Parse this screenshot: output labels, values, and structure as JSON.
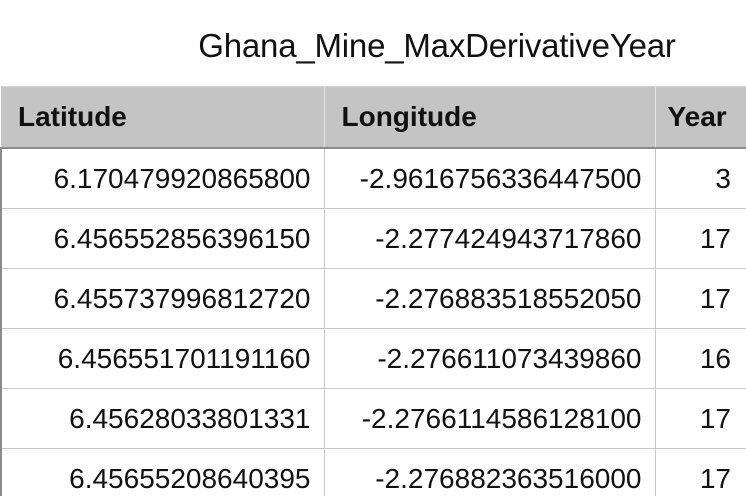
{
  "sheet": {
    "title": "Ghana_Mine_MaxDerivativeYear"
  },
  "table": {
    "headers": [
      "Latitude",
      "Longitude",
      "Year"
    ],
    "rows": [
      [
        "6.170479920865800",
        "-2.9616756336447500",
        "3"
      ],
      [
        "6.456552856396150",
        "-2.277424943717860",
        "17"
      ],
      [
        "6.455737996812720",
        "-2.276883518552050",
        "17"
      ],
      [
        "6.456551701191160",
        "-2.276611073439860",
        "16"
      ],
      [
        "6.45628033801331",
        "-2.2766114586128100",
        "17"
      ],
      [
        "6.45655208640395",
        "-2.276882363516000",
        "17"
      ]
    ]
  }
}
